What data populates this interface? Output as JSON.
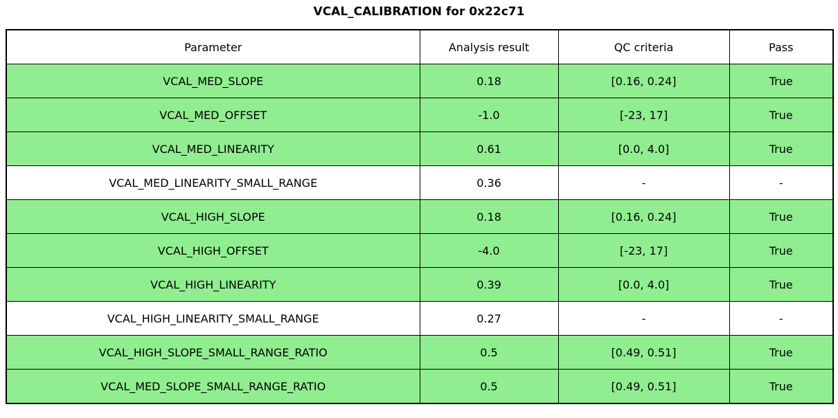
{
  "colors": {
    "pass_row": "#90EE90",
    "neutral_row": "#FFFFFF",
    "border": "#000000",
    "header_bg": "#FFFFFF",
    "text": "#000000"
  },
  "chart_data": {
    "type": "table",
    "title": "VCAL_CALIBRATION for 0x22c71",
    "columns": [
      "Parameter",
      "Analysis result",
      "QC criteria",
      "Pass"
    ],
    "rows": [
      {
        "parameter": "VCAL_MED_SLOPE",
        "analysis_result": "0.18",
        "qc_criteria": "[0.16, 0.24]",
        "pass": "True",
        "highlighted": true
      },
      {
        "parameter": "VCAL_MED_OFFSET",
        "analysis_result": "-1.0",
        "qc_criteria": "[-23, 17]",
        "pass": "True",
        "highlighted": true
      },
      {
        "parameter": "VCAL_MED_LINEARITY",
        "analysis_result": "0.61",
        "qc_criteria": "[0.0, 4.0]",
        "pass": "True",
        "highlighted": true
      },
      {
        "parameter": "VCAL_MED_LINEARITY_SMALL_RANGE",
        "analysis_result": "0.36",
        "qc_criteria": "-",
        "pass": "-",
        "highlighted": false
      },
      {
        "parameter": "VCAL_HIGH_SLOPE",
        "analysis_result": "0.18",
        "qc_criteria": "[0.16, 0.24]",
        "pass": "True",
        "highlighted": true
      },
      {
        "parameter": "VCAL_HIGH_OFFSET",
        "analysis_result": "-4.0",
        "qc_criteria": "[-23, 17]",
        "pass": "True",
        "highlighted": true
      },
      {
        "parameter": "VCAL_HIGH_LINEARITY",
        "analysis_result": "0.39",
        "qc_criteria": "[0.0, 4.0]",
        "pass": "True",
        "highlighted": true
      },
      {
        "parameter": "VCAL_HIGH_LINEARITY_SMALL_RANGE",
        "analysis_result": "0.27",
        "qc_criteria": "-",
        "pass": "-",
        "highlighted": false
      },
      {
        "parameter": "VCAL_HIGH_SLOPE_SMALL_RANGE_RATIO",
        "analysis_result": "0.5",
        "qc_criteria": "[0.49, 0.51]",
        "pass": "True",
        "highlighted": true
      },
      {
        "parameter": "VCAL_MED_SLOPE_SMALL_RANGE_RATIO",
        "analysis_result": "0.5",
        "qc_criteria": "[0.49, 0.51]",
        "pass": "True",
        "highlighted": true
      }
    ],
    "layout": {
      "grid": true,
      "header_row": true,
      "cell_alignment": "center"
    }
  }
}
